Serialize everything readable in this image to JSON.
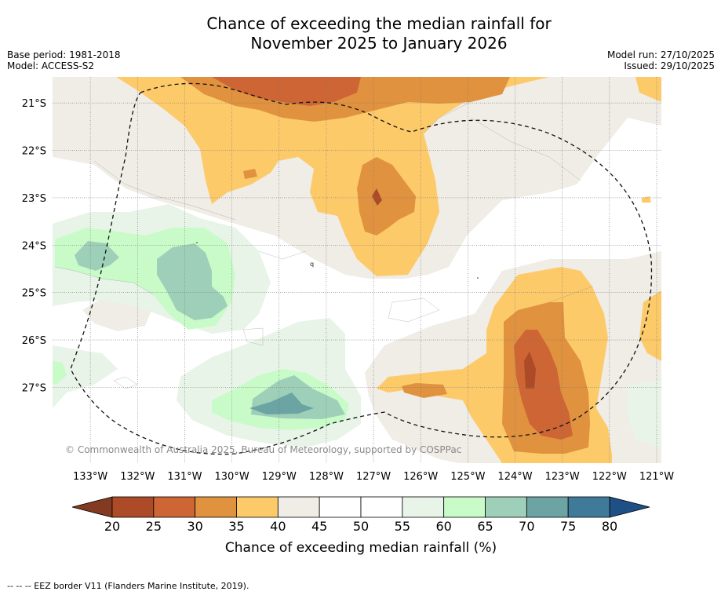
{
  "title": {
    "line1": "Chance of exceeding the median rainfall for",
    "line2": "November 2025 to January 2026"
  },
  "meta_left": {
    "base_period": "Base period: 1981-2018",
    "model": "Model: ACCESS-S2"
  },
  "meta_right": {
    "model_run": "Model run: 27/10/2025",
    "issued": "Issued: 29/10/2025"
  },
  "map": {
    "lat_labels": [
      "21°S",
      "22°S",
      "23°S",
      "24°S",
      "25°S",
      "26°S",
      "27°S"
    ],
    "lat_values": [
      -21,
      -22,
      -23,
      -24,
      -25,
      -26,
      -27
    ],
    "lon_labels": [
      "133°W",
      "132°W",
      "131°W",
      "130°W",
      "129°W",
      "128°W",
      "127°W",
      "126°W",
      "125°W",
      "124°W",
      "123°W",
      "122°W",
      "121°W"
    ],
    "lon_values": [
      -133,
      -132,
      -131,
      -130,
      -129,
      -128,
      -127,
      -126,
      -125,
      -124,
      -123,
      -122,
      -121
    ],
    "lon_range": [
      -133.8,
      -120.9
    ],
    "lat_range": [
      -20.45,
      -28.6
    ],
    "copyright": "© Commonwealth of Australia 2025, Bureau of Meteorology, supported by COSPPac"
  },
  "colorbar": {
    "ticks": [
      "20",
      "25",
      "30",
      "35",
      "40",
      "45",
      "50",
      "55",
      "60",
      "65",
      "70",
      "75",
      "80"
    ],
    "colors": [
      "#ad4a27",
      "#cd6535",
      "#e0923f",
      "#fdca6a",
      "#f0ece6",
      "#ffffff",
      "#ffffff",
      "#e8f4e7",
      "#c9fbc9",
      "#9ed0b9",
      "#6ba4a3",
      "#3f7b99"
    ],
    "under_color": "#843a20",
    "over_color": "#1e4f86",
    "label": "Chance of exceeding median rainfall (%)"
  },
  "legend": {
    "eez_text": "--  --  -- EEZ border V11 (Flanders Marine Institute, 2019)."
  }
}
